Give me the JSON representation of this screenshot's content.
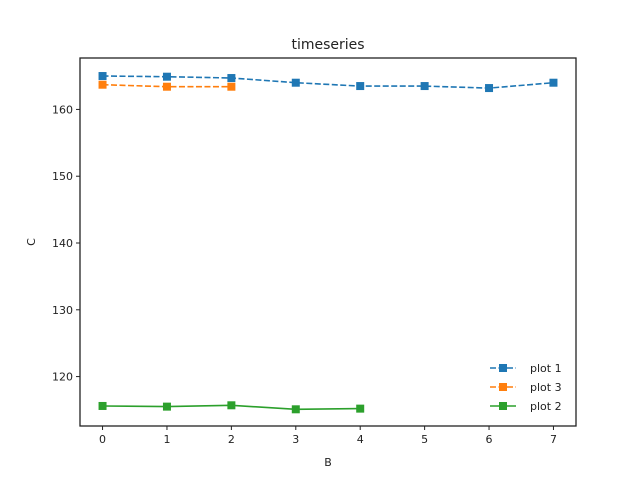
{
  "chart_data": {
    "type": "line",
    "title": "timeseries",
    "xlabel": "B",
    "ylabel": "C",
    "xlim": [
      -0.35,
      7.35
    ],
    "ylim": [
      112.6,
      167.7
    ],
    "xticks": [
      0,
      1,
      2,
      3,
      4,
      5,
      6,
      7
    ],
    "yticks": [
      120,
      130,
      140,
      150,
      160
    ],
    "grid": false,
    "legend_position": "lower-right",
    "marker": "square",
    "series": [
      {
        "name": "plot 1",
        "color": "#1f77b4",
        "linestyle": "dashed",
        "x": [
          0,
          1,
          2,
          3,
          4,
          5,
          6,
          7
        ],
        "y": [
          165.0,
          164.9,
          164.7,
          164.0,
          163.5,
          163.5,
          163.2,
          164.0
        ]
      },
      {
        "name": "plot 3",
        "color": "#ff7f0e",
        "linestyle": "dashed",
        "x": [
          0,
          1,
          2
        ],
        "y": [
          163.7,
          163.4,
          163.4
        ]
      },
      {
        "name": "plot 2",
        "color": "#2ca02c",
        "linestyle": "solid",
        "x": [
          0,
          1,
          2,
          3,
          4
        ],
        "y": [
          115.6,
          115.5,
          115.7,
          115.1,
          115.2
        ]
      }
    ]
  }
}
